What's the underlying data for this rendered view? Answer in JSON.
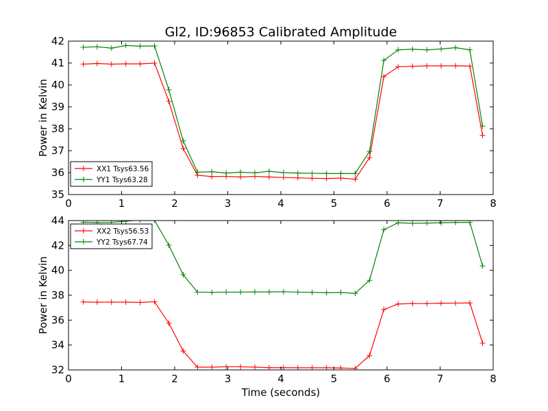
{
  "figure_title": "Gl2, ID:96853 Calibrated Amplitude",
  "colors": {
    "xx": "#ff0000",
    "yy": "#008000"
  },
  "chart_data": [
    {
      "type": "line",
      "ylabel": "Power in Kelvin",
      "xlabel": "",
      "xlim": [
        0,
        8
      ],
      "ylim": [
        35,
        42
      ],
      "xticks": [
        0,
        1,
        2,
        3,
        4,
        5,
        6,
        7,
        8
      ],
      "yticks": [
        35,
        36,
        37,
        38,
        39,
        40,
        41,
        42
      ],
      "legend_position": "lower-left",
      "x": [
        0.28,
        0.54,
        0.81,
        1.08,
        1.35,
        1.62,
        1.89,
        2.16,
        2.43,
        2.7,
        2.97,
        3.24,
        3.51,
        3.78,
        4.05,
        4.32,
        4.59,
        4.86,
        5.13,
        5.4,
        5.67,
        5.94,
        6.21,
        6.48,
        6.75,
        7.02,
        7.29,
        7.56,
        7.8
      ],
      "series": [
        {
          "name": "XX1 Tsys63.56",
          "color": "#ff0000",
          "values": [
            40.95,
            40.98,
            40.95,
            40.96,
            40.96,
            41.0,
            39.25,
            37.1,
            35.88,
            35.82,
            35.83,
            35.8,
            35.83,
            35.8,
            35.78,
            35.76,
            35.74,
            35.73,
            35.75,
            35.7,
            36.68,
            40.38,
            40.83,
            40.85,
            40.87,
            40.87,
            40.87,
            40.86,
            37.7
          ]
        },
        {
          "name": "YY1 Tsys63.28",
          "color": "#008000",
          "values": [
            41.72,
            41.74,
            41.68,
            41.8,
            41.77,
            41.78,
            39.78,
            37.45,
            36.02,
            36.04,
            35.98,
            36.02,
            35.99,
            36.06,
            36.0,
            35.98,
            35.97,
            35.96,
            35.96,
            35.96,
            36.97,
            41.12,
            41.6,
            41.63,
            41.6,
            41.64,
            41.7,
            41.6,
            38.12
          ]
        }
      ]
    },
    {
      "type": "line",
      "ylabel": "Power in Kelvin",
      "xlabel": "Time (seconds)",
      "xlim": [
        0,
        8
      ],
      "ylim": [
        32,
        44
      ],
      "xticks": [
        0,
        1,
        2,
        3,
        4,
        5,
        6,
        7,
        8
      ],
      "yticks": [
        32,
        34,
        36,
        38,
        40,
        42,
        44
      ],
      "legend_position": "upper-left",
      "x": [
        0.28,
        0.54,
        0.81,
        1.08,
        1.35,
        1.62,
        1.89,
        2.16,
        2.43,
        2.7,
        2.97,
        3.24,
        3.51,
        3.78,
        4.05,
        4.32,
        4.59,
        4.86,
        5.13,
        5.4,
        5.67,
        5.94,
        6.21,
        6.48,
        6.75,
        7.02,
        7.29,
        7.56,
        7.8
      ],
      "series": [
        {
          "name": "XX2 Tsys56.53",
          "color": "#ff0000",
          "values": [
            37.46,
            37.44,
            37.45,
            37.45,
            37.42,
            37.48,
            35.75,
            33.52,
            32.22,
            32.22,
            32.25,
            32.25,
            32.22,
            32.18,
            32.18,
            32.17,
            32.17,
            32.17,
            32.15,
            32.12,
            33.15,
            36.85,
            37.3,
            37.33,
            37.33,
            37.36,
            37.37,
            37.38,
            34.15
          ]
        },
        {
          "name": "YY2 Tsys67.74",
          "color": "#008000",
          "values": [
            43.87,
            43.85,
            43.86,
            43.95,
            44.05,
            44.02,
            42.02,
            39.65,
            38.25,
            38.23,
            38.25,
            38.25,
            38.27,
            38.27,
            38.28,
            38.25,
            38.23,
            38.2,
            38.22,
            38.15,
            39.2,
            43.27,
            43.82,
            43.78,
            43.8,
            43.82,
            43.85,
            43.85,
            40.35
          ]
        }
      ]
    }
  ]
}
